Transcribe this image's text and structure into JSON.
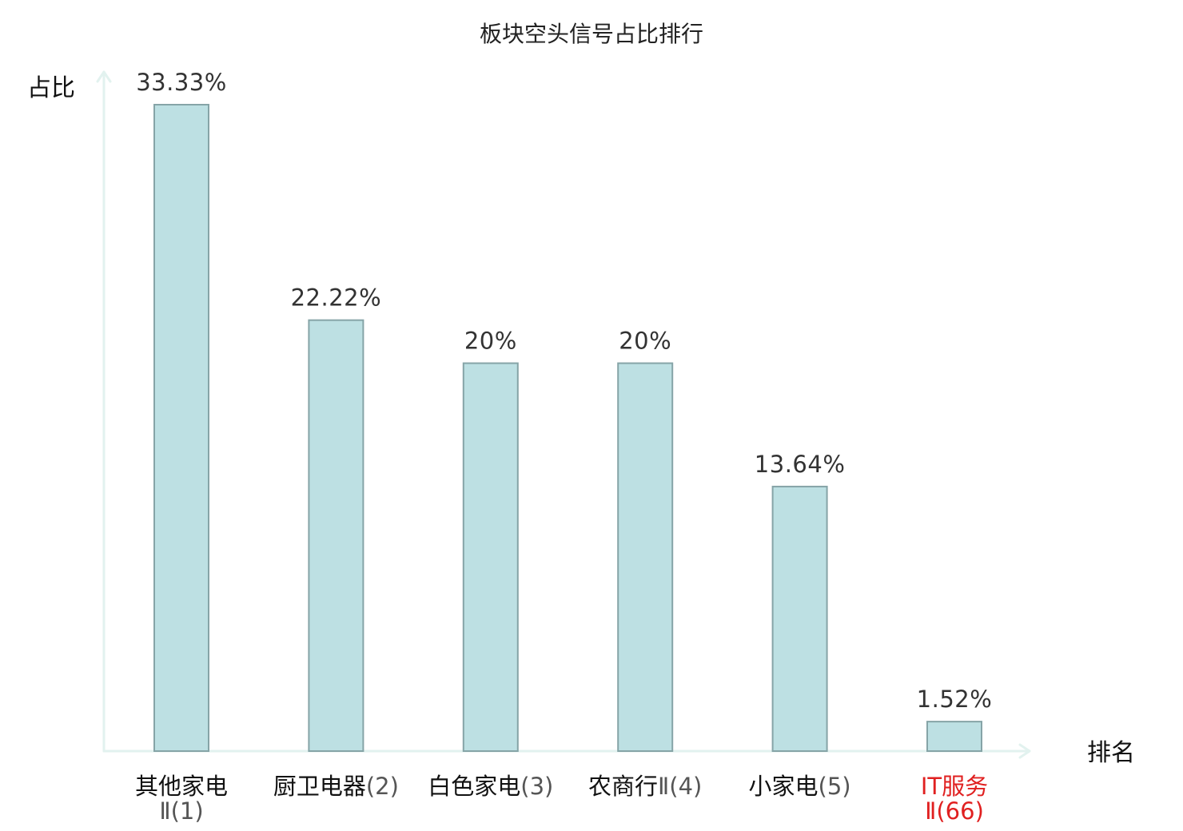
{
  "chart_data": {
    "type": "bar",
    "title": "板块空头信号占比排行",
    "ylabel": "占比",
    "xlabel": "排名",
    "ylim": [
      0,
      33.33
    ],
    "categories": [
      {
        "name": "其他家电",
        "rank": "Ⅱ(1)",
        "highlight": false
      },
      {
        "name": "厨卫电器",
        "rank": "(2)",
        "highlight": false
      },
      {
        "name": "白色家电",
        "rank": "(3)",
        "highlight": false
      },
      {
        "name": "农商行",
        "rank": "Ⅱ(4)",
        "highlight": false
      },
      {
        "name": "小家电",
        "rank": "(5)",
        "highlight": false
      },
      {
        "name": "IT服务",
        "rank": "Ⅱ(66)",
        "highlight": true
      }
    ],
    "values": [
      33.33,
      22.22,
      20,
      20,
      13.64,
      1.52
    ],
    "labels": [
      "33.33%",
      "22.22%",
      "20%",
      "20%",
      "13.64%",
      "1.52%"
    ],
    "grid": false
  },
  "colors": {
    "bar_fill": "#bde0e3",
    "bar_stroke": "#86a4a7",
    "axis": "#e2f2ef",
    "highlight": "#e02020"
  }
}
